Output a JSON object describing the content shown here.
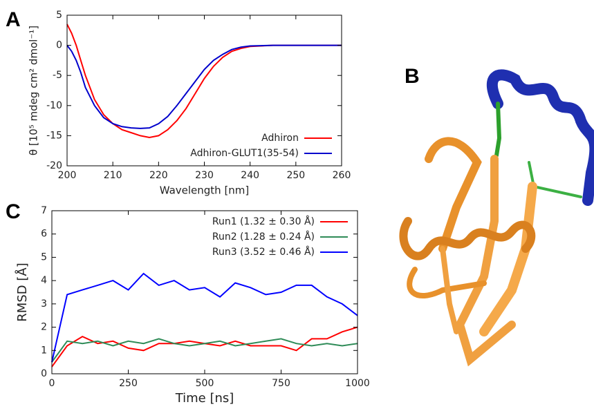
{
  "panel_labels": [
    "A",
    "B",
    "C"
  ],
  "chart_data": [
    {
      "type": "line",
      "xlabel": "Wavelength [nm]",
      "ylabel": "θ [10⁵ mdeg cm² dmol⁻¹]",
      "x": [
        200,
        201,
        202,
        203,
        204,
        205,
        206,
        208,
        210,
        212,
        214,
        216,
        218,
        220,
        222,
        224,
        226,
        228,
        230,
        232,
        234,
        236,
        238,
        240,
        245,
        250,
        255,
        260
      ],
      "series": [
        {
          "name": "Adhiron",
          "color": "#ff0000",
          "values": [
            3.5,
            2,
            0,
            -2.5,
            -5,
            -7,
            -9,
            -11.5,
            -13,
            -14,
            -14.5,
            -15,
            -15.3,
            -15,
            -14,
            -12.5,
            -10.5,
            -8,
            -5.5,
            -3.5,
            -2,
            -1,
            -0.5,
            -0.2,
            0,
            0,
            0,
            0
          ]
        },
        {
          "name": "Adhiron-GLUT1(35-54)",
          "color": "#0000cc",
          "values": [
            0,
            -1,
            -2.5,
            -4.5,
            -7,
            -8.5,
            -10,
            -12,
            -13,
            -13.5,
            -13.7,
            -13.8,
            -13.7,
            -13,
            -11.8,
            -10,
            -8,
            -6,
            -4,
            -2.5,
            -1.5,
            -0.7,
            -0.3,
            -0.1,
            0,
            0,
            0,
            0
          ]
        }
      ],
      "xlim": [
        200,
        260
      ],
      "xticks": [
        200,
        210,
        220,
        230,
        240,
        250,
        260
      ],
      "ylim": [
        -20,
        5
      ],
      "yticks": [
        -20,
        -15,
        -10,
        -5,
        0,
        5
      ],
      "grid": false,
      "legend": "lower right"
    },
    {
      "type": "line",
      "xlabel": "Time [ns]",
      "ylabel": "RMSD [Å]",
      "x": [
        0,
        50,
        100,
        150,
        200,
        250,
        300,
        350,
        400,
        450,
        500,
        550,
        600,
        650,
        700,
        750,
        800,
        850,
        900,
        950,
        1000
      ],
      "series": [
        {
          "name": "Run1 (1.32 ± 0.30 Å)",
          "color": "#ff0000",
          "values": [
            0.3,
            1.2,
            1.6,
            1.3,
            1.4,
            1.1,
            1.0,
            1.3,
            1.3,
            1.4,
            1.3,
            1.2,
            1.4,
            1.2,
            1.2,
            1.2,
            1.0,
            1.5,
            1.5,
            1.8,
            2.0
          ]
        },
        {
          "name": "Run2 (1.28 ± 0.24 Å)",
          "color": "#2e8b57",
          "values": [
            0.5,
            1.4,
            1.3,
            1.4,
            1.2,
            1.4,
            1.3,
            1.5,
            1.3,
            1.2,
            1.3,
            1.4,
            1.2,
            1.3,
            1.4,
            1.5,
            1.3,
            1.2,
            1.3,
            1.2,
            1.3
          ]
        },
        {
          "name": "Run3 (3.52 ± 0.46 Å)",
          "color": "#0000ff",
          "values": [
            0.5,
            3.4,
            3.6,
            3.8,
            4.0,
            3.6,
            4.3,
            3.8,
            4.0,
            3.6,
            3.7,
            3.3,
            3.9,
            3.7,
            3.4,
            3.5,
            3.8,
            3.8,
            3.3,
            3.0,
            2.5
          ]
        }
      ],
      "xlim": [
        0,
        1000
      ],
      "xticks": [
        0,
        250,
        500,
        750,
        1000
      ],
      "ylim": [
        0,
        7
      ],
      "yticks": [
        0,
        1,
        2,
        3,
        4,
        5,
        6,
        7
      ],
      "grid": false,
      "legend": "upper right"
    }
  ]
}
